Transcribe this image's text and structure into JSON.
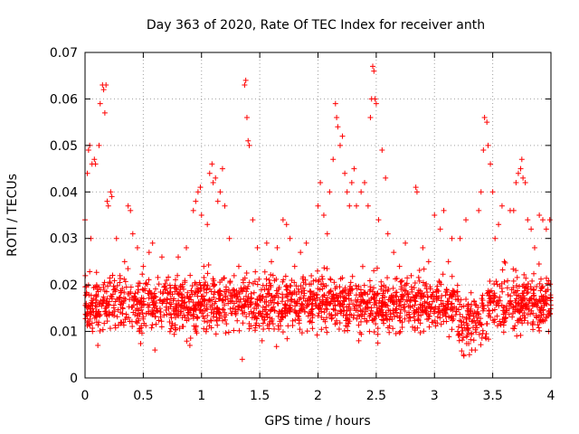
{
  "chart_data": {
    "type": "scatter",
    "title": "Day 363 of 2020, Rate Of TEC Index for receiver anth",
    "xlabel": "GPS time / hours",
    "ylabel": "ROTI / TECUs",
    "xlim": [
      0,
      4
    ],
    "ylim": [
      0,
      0.07
    ],
    "xticks": [
      0,
      0.5,
      1,
      1.5,
      2,
      2.5,
      3,
      3.5,
      4
    ],
    "xtick_labels": [
      "0",
      "0.5",
      "1",
      "1.5",
      "2",
      "2.5",
      "3",
      "3.5",
      "4"
    ],
    "yticks": [
      0,
      0.01,
      0.02,
      0.03,
      0.04,
      0.05,
      0.06,
      0.07
    ],
    "ytick_labels": [
      "0",
      "0.01",
      "0.02",
      "0.03",
      "0.04",
      "0.05",
      "0.06",
      "0.07"
    ],
    "grid": true,
    "marker": "+",
    "marker_color": "#ff0000",
    "series": [
      {
        "name": "anth",
        "points": [
          [
            0.0,
            0.034
          ],
          [
            0.01,
            0.016
          ],
          [
            0.02,
            0.044
          ],
          [
            0.03,
            0.049
          ],
          [
            0.04,
            0.05
          ],
          [
            0.05,
            0.03
          ],
          [
            0.06,
            0.046
          ],
          [
            0.08,
            0.047
          ],
          [
            0.09,
            0.046
          ],
          [
            0.1,
            0.012
          ],
          [
            0.11,
            0.007
          ],
          [
            0.12,
            0.05
          ],
          [
            0.13,
            0.059
          ],
          [
            0.15,
            0.063
          ],
          [
            0.16,
            0.062
          ],
          [
            0.17,
            0.057
          ],
          [
            0.18,
            0.063
          ],
          [
            0.19,
            0.038
          ],
          [
            0.2,
            0.037
          ],
          [
            0.22,
            0.04
          ],
          [
            0.23,
            0.039
          ],
          [
            0.24,
            0.018
          ],
          [
            0.27,
            0.03
          ],
          [
            0.3,
            0.022
          ],
          [
            0.34,
            0.025
          ],
          [
            0.37,
            0.037
          ],
          [
            0.39,
            0.036
          ],
          [
            0.41,
            0.031
          ],
          [
            0.45,
            0.028
          ],
          [
            0.5,
            0.024
          ],
          [
            0.55,
            0.027
          ],
          [
            0.58,
            0.029
          ],
          [
            0.6,
            0.006
          ],
          [
            0.66,
            0.026
          ],
          [
            0.7,
            0.021
          ],
          [
            0.75,
            0.018
          ],
          [
            0.8,
            0.026
          ],
          [
            0.85,
            0.016
          ],
          [
            0.87,
            0.028
          ],
          [
            0.9,
            0.007
          ],
          [
            0.93,
            0.036
          ],
          [
            0.95,
            0.038
          ],
          [
            0.97,
            0.04
          ],
          [
            0.99,
            0.041
          ],
          [
            1.0,
            0.035
          ],
          [
            1.02,
            0.024
          ],
          [
            1.05,
            0.033
          ],
          [
            1.07,
            0.044
          ],
          [
            1.09,
            0.046
          ],
          [
            1.1,
            0.042
          ],
          [
            1.12,
            0.043
          ],
          [
            1.14,
            0.038
          ],
          [
            1.16,
            0.04
          ],
          [
            1.18,
            0.045
          ],
          [
            1.2,
            0.037
          ],
          [
            1.24,
            0.03
          ],
          [
            1.28,
            0.022
          ],
          [
            1.32,
            0.024
          ],
          [
            1.35,
            0.004
          ],
          [
            1.37,
            0.063
          ],
          [
            1.38,
            0.064
          ],
          [
            1.39,
            0.056
          ],
          [
            1.4,
            0.051
          ],
          [
            1.41,
            0.05
          ],
          [
            1.44,
            0.034
          ],
          [
            1.48,
            0.028
          ],
          [
            1.52,
            0.008
          ],
          [
            1.56,
            0.029
          ],
          [
            1.6,
            0.025
          ],
          [
            1.65,
            0.028
          ],
          [
            1.7,
            0.034
          ],
          [
            1.73,
            0.033
          ],
          [
            1.76,
            0.03
          ],
          [
            1.8,
            0.024
          ],
          [
            1.85,
            0.027
          ],
          [
            1.9,
            0.029
          ],
          [
            1.95,
            0.018
          ],
          [
            2.0,
            0.037
          ],
          [
            2.02,
            0.042
          ],
          [
            2.05,
            0.035
          ],
          [
            2.08,
            0.031
          ],
          [
            2.1,
            0.04
          ],
          [
            2.13,
            0.047
          ],
          [
            2.15,
            0.059
          ],
          [
            2.16,
            0.056
          ],
          [
            2.17,
            0.054
          ],
          [
            2.19,
            0.05
          ],
          [
            2.21,
            0.052
          ],
          [
            2.23,
            0.044
          ],
          [
            2.25,
            0.04
          ],
          [
            2.27,
            0.037
          ],
          [
            2.29,
            0.042
          ],
          [
            2.31,
            0.045
          ],
          [
            2.33,
            0.037
          ],
          [
            2.35,
            0.008
          ],
          [
            2.37,
            0.04
          ],
          [
            2.4,
            0.042
          ],
          [
            2.43,
            0.037
          ],
          [
            2.45,
            0.056
          ],
          [
            2.46,
            0.06
          ],
          [
            2.47,
            0.067
          ],
          [
            2.48,
            0.066
          ],
          [
            2.49,
            0.06
          ],
          [
            2.5,
            0.059
          ],
          [
            2.52,
            0.034
          ],
          [
            2.55,
            0.049
          ],
          [
            2.58,
            0.043
          ],
          [
            2.6,
            0.031
          ],
          [
            2.65,
            0.027
          ],
          [
            2.7,
            0.024
          ],
          [
            2.75,
            0.029
          ],
          [
            2.8,
            0.022
          ],
          [
            2.84,
            0.041
          ],
          [
            2.85,
            0.04
          ],
          [
            2.9,
            0.028
          ],
          [
            2.95,
            0.025
          ],
          [
            3.0,
            0.035
          ],
          [
            3.05,
            0.032
          ],
          [
            3.08,
            0.036
          ],
          [
            3.12,
            0.025
          ],
          [
            3.15,
            0.03
          ],
          [
            3.2,
            0.01
          ],
          [
            3.22,
            0.03
          ],
          [
            3.25,
            0.005
          ],
          [
            3.27,
            0.034
          ],
          [
            3.3,
            0.005
          ],
          [
            3.32,
            0.006
          ],
          [
            3.35,
            0.006
          ],
          [
            3.38,
            0.036
          ],
          [
            3.4,
            0.04
          ],
          [
            3.42,
            0.049
          ],
          [
            3.43,
            0.056
          ],
          [
            3.45,
            0.055
          ],
          [
            3.46,
            0.05
          ],
          [
            3.48,
            0.046
          ],
          [
            3.5,
            0.04
          ],
          [
            3.52,
            0.03
          ],
          [
            3.55,
            0.033
          ],
          [
            3.58,
            0.037
          ],
          [
            3.6,
            0.025
          ],
          [
            3.65,
            0.036
          ],
          [
            3.68,
            0.036
          ],
          [
            3.7,
            0.042
          ],
          [
            3.72,
            0.044
          ],
          [
            3.74,
            0.045
          ],
          [
            3.75,
            0.047
          ],
          [
            3.76,
            0.043
          ],
          [
            3.78,
            0.042
          ],
          [
            3.8,
            0.034
          ],
          [
            3.83,
            0.032
          ],
          [
            3.86,
            0.028
          ],
          [
            3.9,
            0.035
          ],
          [
            3.93,
            0.034
          ],
          [
            3.96,
            0.032
          ],
          [
            3.98,
            0.01
          ],
          [
            3.99,
            0.034
          ]
        ],
        "density_background": {
          "description": "dense cloud of + markers spanning x 0-4 h, y mostly 0.005-0.03 TECU",
          "x_range": [
            0,
            4
          ],
          "y_range": [
            0.004,
            0.029
          ],
          "y_center": 0.016,
          "approx_count": 2000
        }
      }
    ]
  }
}
